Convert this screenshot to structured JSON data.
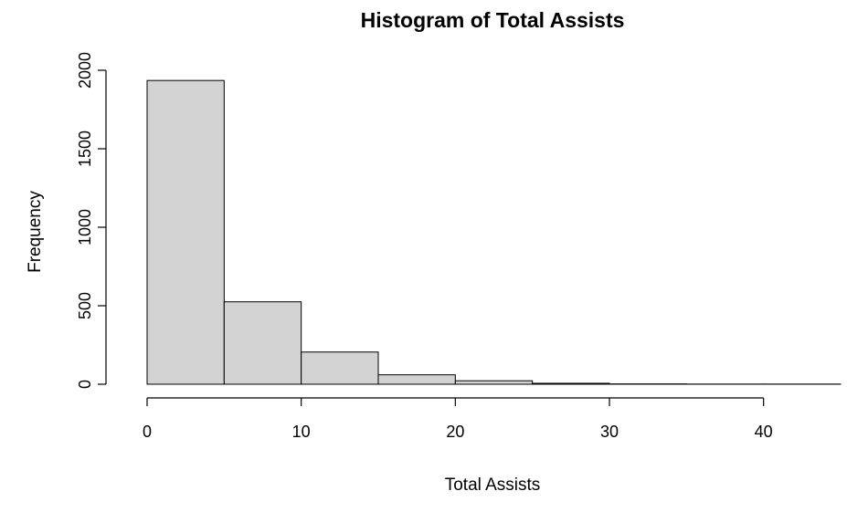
{
  "chart_data": {
    "type": "bar",
    "title": "Histogram of Total Assists",
    "xlabel": "Total Assists",
    "ylabel": "Frequency",
    "bin_edges": [
      0,
      5,
      10,
      15,
      20,
      25,
      30,
      35,
      40,
      45
    ],
    "values": [
      1935,
      525,
      205,
      60,
      22,
      6,
      2,
      1,
      1
    ],
    "xlim": [
      0,
      45
    ],
    "ylim": [
      0,
      2000
    ],
    "x_ticks": [
      0,
      10,
      20,
      30,
      40
    ],
    "x_tick_labels": [
      "0",
      "10",
      "20",
      "30",
      "40"
    ],
    "y_ticks": [
      0,
      500,
      1000,
      1500,
      2000
    ],
    "y_tick_labels": [
      "0",
      "500",
      "1000",
      "1500",
      "2000"
    ],
    "bar_color": "#d3d3d3",
    "grid": false
  }
}
